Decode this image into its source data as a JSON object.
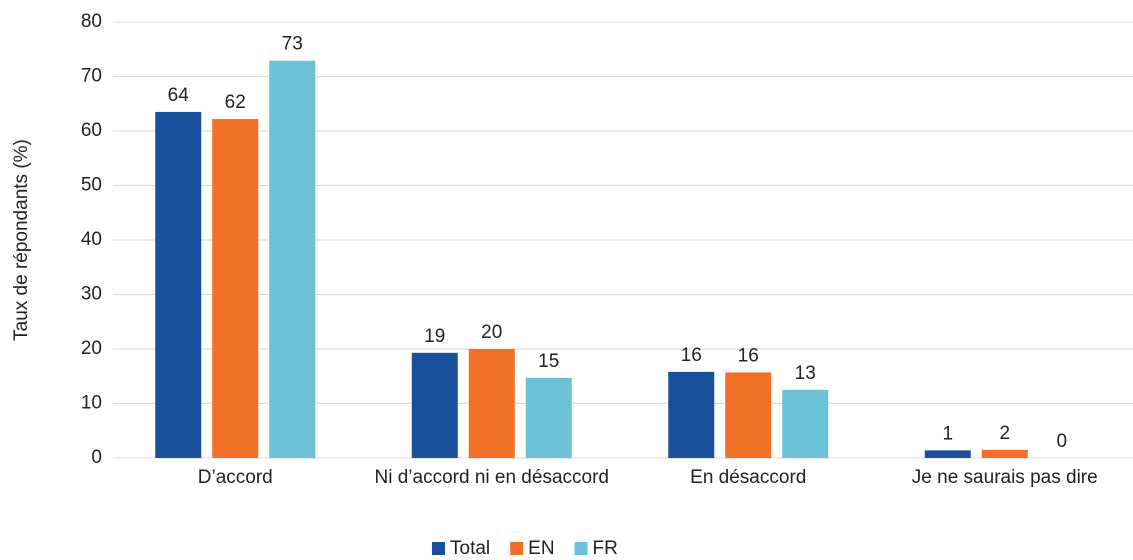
{
  "chart_data": {
    "type": "bar",
    "y_label": "Taux de répondants (%)",
    "categories": [
      "D’accord",
      "Ni d’accord ni en désaccord",
      "En désaccord",
      "Je ne saurais pas dire"
    ],
    "series": [
      {
        "name": "Total",
        "color": "#1a4f9c",
        "values": [
          63.5,
          19.3,
          15.8,
          1.4
        ],
        "value_labels": [
          "64",
          "19",
          "16",
          "1"
        ]
      },
      {
        "name": "EN",
        "color": "#f26f26",
        "values": [
          62.2,
          20,
          15.7,
          1.5
        ],
        "value_labels": [
          "62",
          "20",
          "16",
          "2"
        ]
      },
      {
        "name": "FR",
        "color": "#6bc1d6",
        "values": [
          72.9,
          14.7,
          12.5,
          0
        ],
        "value_labels": [
          "73",
          "15",
          "13",
          "0"
        ]
      }
    ],
    "ylim": [
      0,
      80
    ],
    "yticks": [
      0,
      10,
      20,
      30,
      40,
      50,
      60,
      70,
      80
    ],
    "grid": true,
    "legend": "bottom"
  }
}
